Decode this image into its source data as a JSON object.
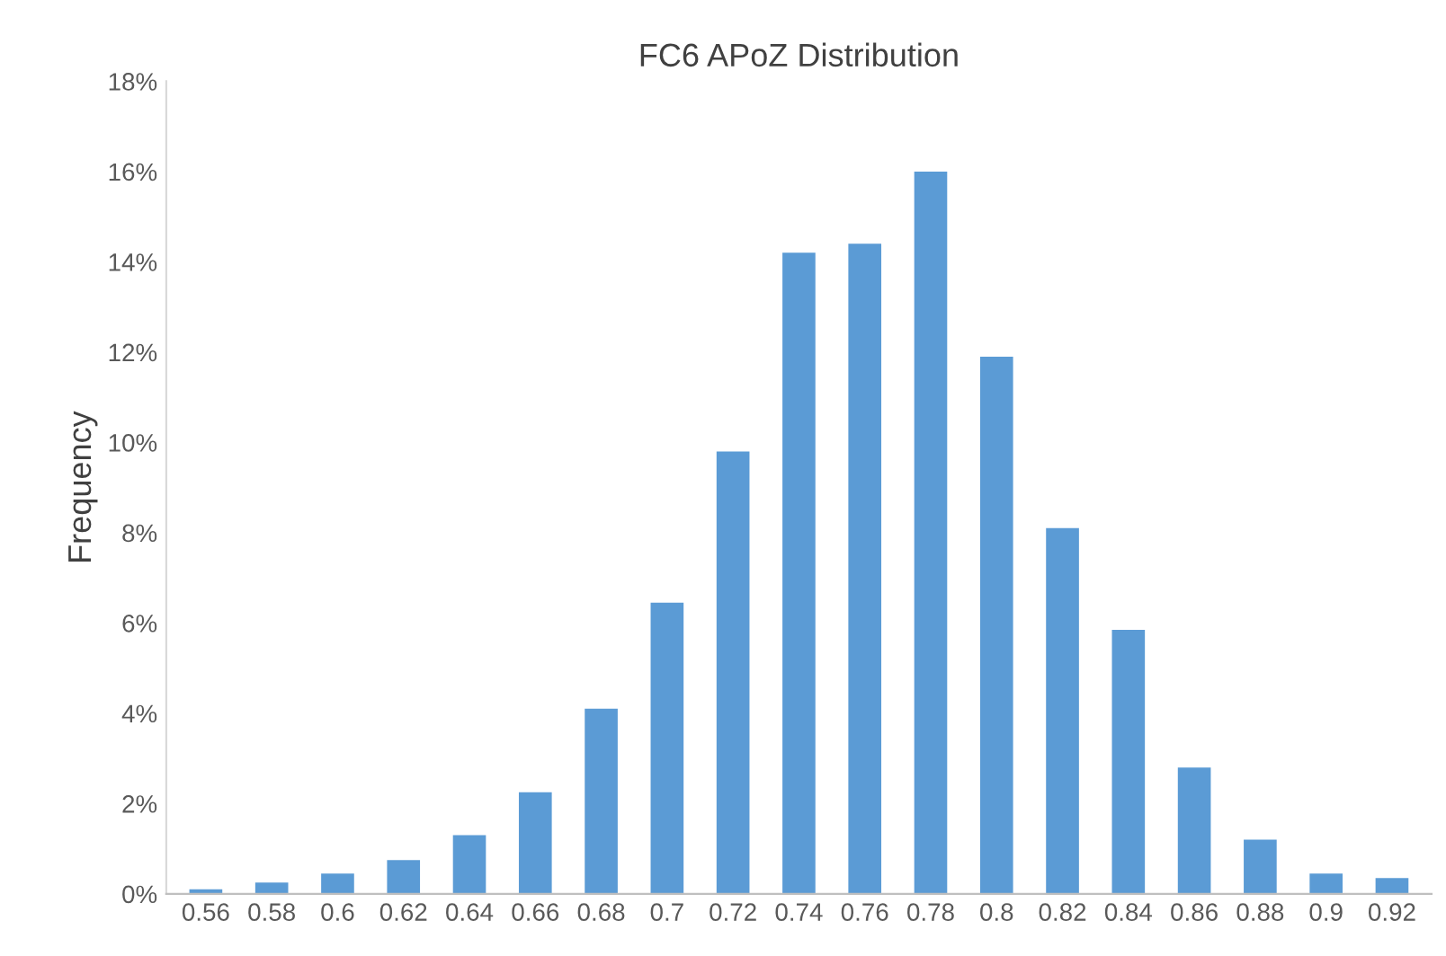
{
  "chart_data": {
    "type": "bar",
    "title": "FC6 APoZ Distribution",
    "ylabel": "Frequency",
    "categories": [
      "0.56",
      "0.58",
      "0.6",
      "0.62",
      "0.64",
      "0.66",
      "0.68",
      "0.7",
      "0.72",
      "0.74",
      "0.76",
      "0.78",
      "0.8",
      "0.82",
      "0.84",
      "0.86",
      "0.88",
      "0.9",
      "0.92"
    ],
    "values": [
      0.1,
      0.25,
      0.45,
      0.75,
      1.3,
      2.25,
      4.1,
      6.45,
      9.8,
      14.2,
      14.4,
      16.0,
      11.9,
      8.1,
      5.85,
      2.8,
      1.2,
      0.45,
      0.35
    ],
    "color": "#5b9bd5",
    "ylim": [
      0,
      18
    ],
    "yticks": [
      {
        "value": 0,
        "label": "0%"
      },
      {
        "value": 2,
        "label": "2%"
      },
      {
        "value": 4,
        "label": "4%"
      },
      {
        "value": 6,
        "label": "6%"
      },
      {
        "value": 8,
        "label": "8%"
      },
      {
        "value": 10,
        "label": "10%"
      },
      {
        "value": 12,
        "label": "12%"
      },
      {
        "value": 14,
        "label": "14%"
      },
      {
        "value": 16,
        "label": "16%"
      },
      {
        "value": 18,
        "label": "18%"
      }
    ],
    "grid": false
  }
}
